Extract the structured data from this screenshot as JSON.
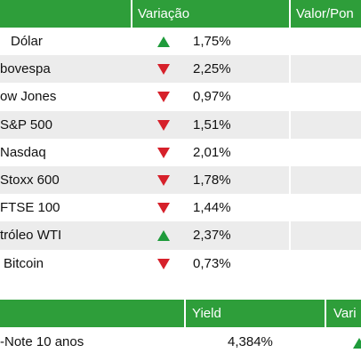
{
  "colors": {
    "header_green": "#2e9e3a",
    "up": "#1f9b3b",
    "down": "#d6202a",
    "stripe": "#ececec"
  },
  "market": {
    "headers": {
      "variation": "Variação",
      "value": "Valor/Pon"
    },
    "rows": [
      {
        "name": "Dólar",
        "direction": "up",
        "change": "1,75%"
      },
      {
        "name": "bovespa",
        "direction": "down",
        "change": "2,25%"
      },
      {
        "name": "ow Jones",
        "direction": "down",
        "change": "0,97%"
      },
      {
        "name": "S&P 500",
        "direction": "down",
        "change": "1,51%"
      },
      {
        "name": "Nasdaq",
        "direction": "down",
        "change": "2,01%"
      },
      {
        "name": "Stoxx 600",
        "direction": "down",
        "change": "1,78%"
      },
      {
        "name": "FTSE 100",
        "direction": "down",
        "change": "1,44%"
      },
      {
        "name": "tróleo WTI",
        "direction": "up",
        "change": "2,37%"
      },
      {
        "name": "Bitcoin",
        "direction": "down",
        "change": "0,73%"
      }
    ]
  },
  "bonds": {
    "headers": {
      "yield": "Yield",
      "variation": "Vari"
    },
    "rows": [
      {
        "name": "-Note 10 anos",
        "yield": "4,384%",
        "direction": "up"
      }
    ]
  }
}
